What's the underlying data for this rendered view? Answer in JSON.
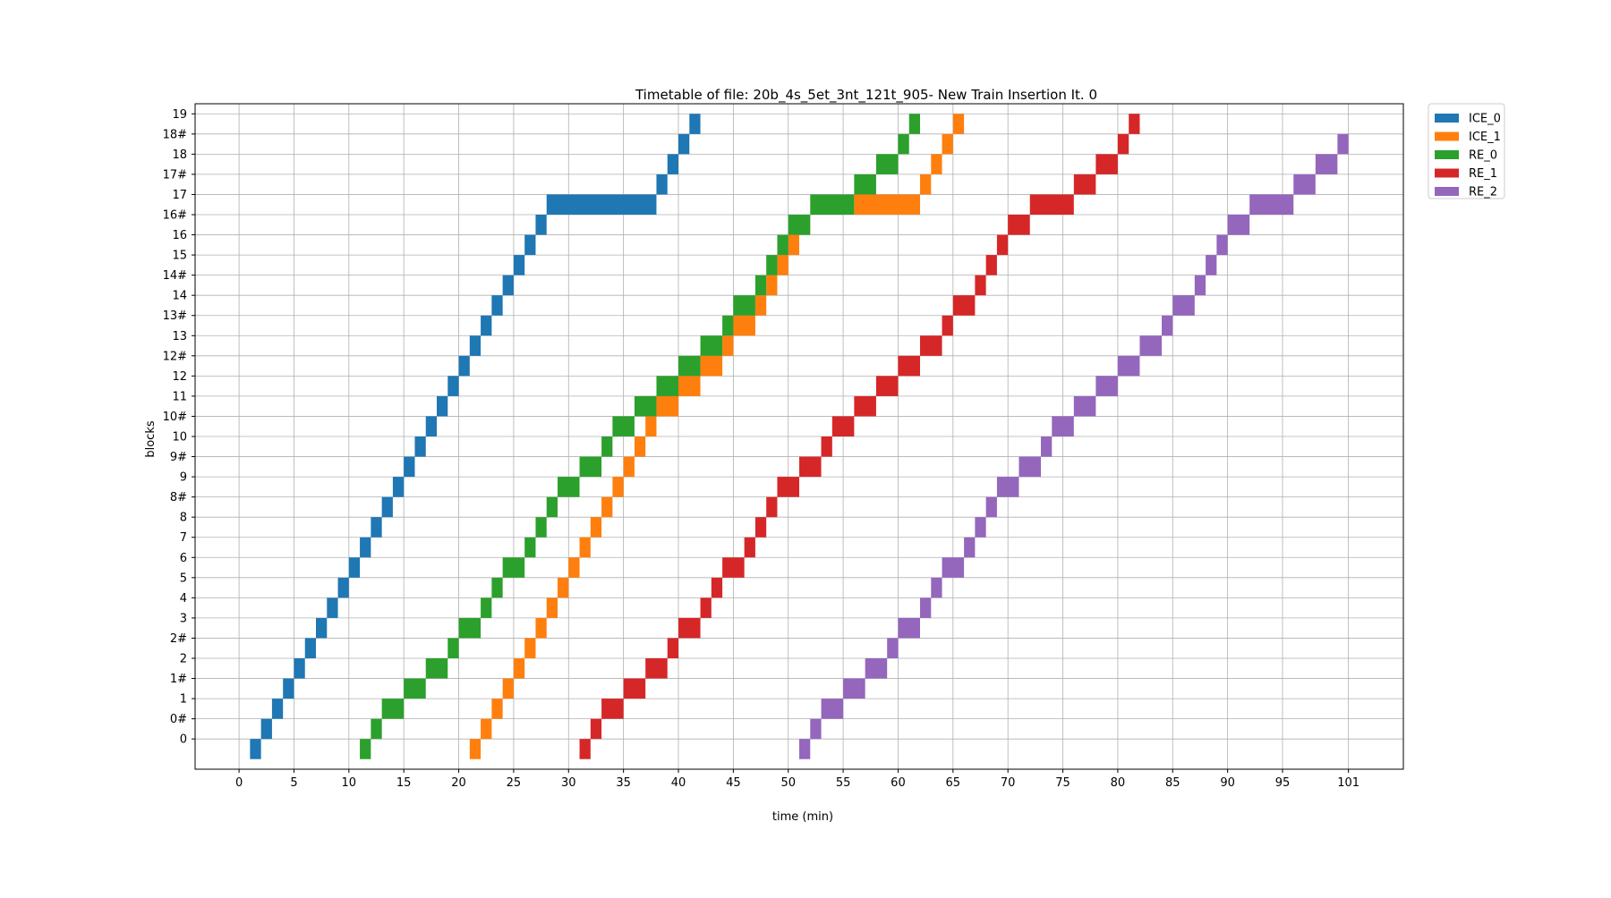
{
  "chart_data": {
    "type": "timetable",
    "title": "Timetable of file: 20b_4s_5et_3nt_121t_905- New Train Insertion It. 0",
    "xlabel": "time (min)",
    "ylabel": "blocks",
    "xlim": [
      -4,
      106
    ],
    "ylim": [
      -1.5,
      31.5
    ],
    "grid": true,
    "legend_position": "top-right outside",
    "x_ticks": [
      {
        "value": 0,
        "label": "0"
      },
      {
        "value": 5,
        "label": "5"
      },
      {
        "value": 10,
        "label": "10"
      },
      {
        "value": 15,
        "label": "15"
      },
      {
        "value": 20,
        "label": "20"
      },
      {
        "value": 25,
        "label": "25"
      },
      {
        "value": 30,
        "label": "30"
      },
      {
        "value": 35,
        "label": "35"
      },
      {
        "value": 40,
        "label": "40"
      },
      {
        "value": 45,
        "label": "45"
      },
      {
        "value": 50,
        "label": "50"
      },
      {
        "value": 55,
        "label": "55"
      },
      {
        "value": 60,
        "label": "60"
      },
      {
        "value": 65,
        "label": "65"
      },
      {
        "value": 70,
        "label": "70"
      },
      {
        "value": 75,
        "label": "75"
      },
      {
        "value": 80,
        "label": "80"
      },
      {
        "value": 85,
        "label": "85"
      },
      {
        "value": 90,
        "label": "90"
      },
      {
        "value": 95,
        "label": "95"
      },
      {
        "value": 101,
        "label": "101"
      }
    ],
    "categories": [
      "0",
      "0#",
      "1",
      "1#",
      "2",
      "2#",
      "3",
      "4",
      "5",
      "6",
      "7",
      "8",
      "8#",
      "9",
      "9#",
      "10",
      "10#",
      "11",
      "12",
      "12#",
      "13",
      "13#",
      "14",
      "14#",
      "15",
      "16",
      "16#",
      "17",
      "17#",
      "18",
      "18#",
      "19"
    ],
    "series": [
      {
        "name": "ICE_0",
        "color": "#1f77b4",
        "segments": [
          [
            1,
            2
          ],
          [
            2,
            3
          ],
          [
            3,
            4
          ],
          [
            4,
            5
          ],
          [
            5,
            6
          ],
          [
            6,
            7
          ],
          [
            7,
            8
          ],
          [
            8,
            9
          ],
          [
            9,
            10
          ],
          [
            10,
            11
          ],
          [
            11,
            12
          ],
          [
            12,
            13
          ],
          [
            13,
            14
          ],
          [
            14,
            15
          ],
          [
            15,
            16
          ],
          [
            16,
            17
          ],
          [
            17,
            18
          ],
          [
            18,
            19
          ],
          [
            19,
            20
          ],
          [
            20,
            21
          ],
          [
            21,
            22
          ],
          [
            22,
            23
          ],
          [
            23,
            24
          ],
          [
            24,
            25
          ],
          [
            25,
            26
          ],
          [
            26,
            27
          ],
          [
            27,
            28
          ],
          [
            28,
            38
          ],
          [
            38,
            39
          ],
          [
            39,
            40
          ],
          [
            40,
            41
          ],
          [
            41,
            42
          ]
        ]
      },
      {
        "name": "ICE_1",
        "color": "#ff7f0e",
        "segments": [
          [
            21,
            22
          ],
          [
            22,
            23
          ],
          [
            23,
            24
          ],
          [
            24,
            25
          ],
          [
            25,
            26
          ],
          [
            26,
            27
          ],
          [
            27,
            28
          ],
          [
            28,
            29
          ],
          [
            29,
            30
          ],
          [
            30,
            31
          ],
          [
            31,
            32
          ],
          [
            32,
            33
          ],
          [
            33,
            34
          ],
          [
            34,
            35
          ],
          [
            35,
            36
          ],
          [
            36,
            37
          ],
          [
            37,
            38
          ],
          [
            38,
            40
          ],
          [
            40,
            42
          ],
          [
            42,
            44
          ],
          [
            44,
            45
          ],
          [
            45,
            47
          ],
          [
            47,
            48
          ],
          [
            48,
            49
          ],
          [
            49,
            50
          ],
          [
            50,
            51
          ],
          [
            51,
            52
          ],
          [
            56,
            62
          ],
          [
            62,
            63
          ],
          [
            63,
            64
          ],
          [
            64,
            65
          ],
          [
            65,
            66
          ]
        ]
      },
      {
        "name": "RE_0",
        "color": "#2ca02c",
        "segments": [
          [
            11,
            12
          ],
          [
            12,
            13
          ],
          [
            13,
            15
          ],
          [
            15,
            17
          ],
          [
            17,
            19
          ],
          [
            19,
            20
          ],
          [
            20,
            22
          ],
          [
            22,
            23
          ],
          [
            23,
            24
          ],
          [
            24,
            26
          ],
          [
            26,
            27
          ],
          [
            27,
            28
          ],
          [
            28,
            29
          ],
          [
            29,
            31
          ],
          [
            31,
            33
          ],
          [
            33,
            34
          ],
          [
            34,
            36
          ],
          [
            36,
            38
          ],
          [
            38,
            40
          ],
          [
            40,
            42
          ],
          [
            42,
            44
          ],
          [
            44,
            45
          ],
          [
            45,
            47
          ],
          [
            47,
            48
          ],
          [
            48,
            49
          ],
          [
            49,
            50
          ],
          [
            50,
            52
          ],
          [
            52,
            56
          ],
          [
            56,
            58
          ],
          [
            58,
            60
          ],
          [
            60,
            61
          ],
          [
            61,
            62
          ]
        ]
      },
      {
        "name": "RE_1",
        "color": "#d62728",
        "segments": [
          [
            31,
            32
          ],
          [
            32,
            33
          ],
          [
            33,
            35
          ],
          [
            35,
            37
          ],
          [
            37,
            39
          ],
          [
            39,
            40
          ],
          [
            40,
            42
          ],
          [
            42,
            43
          ],
          [
            43,
            44
          ],
          [
            44,
            46
          ],
          [
            46,
            47
          ],
          [
            47,
            48
          ],
          [
            48,
            49
          ],
          [
            49,
            51
          ],
          [
            51,
            53
          ],
          [
            53,
            54
          ],
          [
            54,
            56
          ],
          [
            56,
            58
          ],
          [
            58,
            60
          ],
          [
            60,
            62
          ],
          [
            62,
            64
          ],
          [
            64,
            65
          ],
          [
            65,
            67
          ],
          [
            67,
            68
          ],
          [
            68,
            69
          ],
          [
            69,
            70
          ],
          [
            70,
            72
          ],
          [
            72,
            76
          ],
          [
            76,
            78
          ],
          [
            78,
            80
          ],
          [
            80,
            81
          ],
          [
            81,
            82
          ]
        ]
      },
      {
        "name": "RE_2",
        "color": "#9467bd",
        "segments": [
          [
            51,
            52
          ],
          [
            52,
            53
          ],
          [
            53,
            55
          ],
          [
            55,
            57
          ],
          [
            57,
            59
          ],
          [
            59,
            60
          ],
          [
            60,
            62
          ],
          [
            62,
            63
          ],
          [
            63,
            64
          ],
          [
            64,
            66
          ],
          [
            66,
            67
          ],
          [
            67,
            68
          ],
          [
            68,
            69
          ],
          [
            69,
            71
          ],
          [
            71,
            73
          ],
          [
            73,
            74
          ],
          [
            74,
            76
          ],
          [
            76,
            78
          ],
          [
            78,
            80
          ],
          [
            80,
            82
          ],
          [
            82,
            84
          ],
          [
            84,
            85
          ],
          [
            85,
            87
          ],
          [
            87,
            88
          ],
          [
            88,
            89
          ],
          [
            89,
            90
          ],
          [
            90,
            92
          ],
          [
            92,
            96
          ],
          [
            96,
            98
          ],
          [
            98,
            100
          ],
          [
            100,
            101
          ]
        ]
      }
    ]
  }
}
